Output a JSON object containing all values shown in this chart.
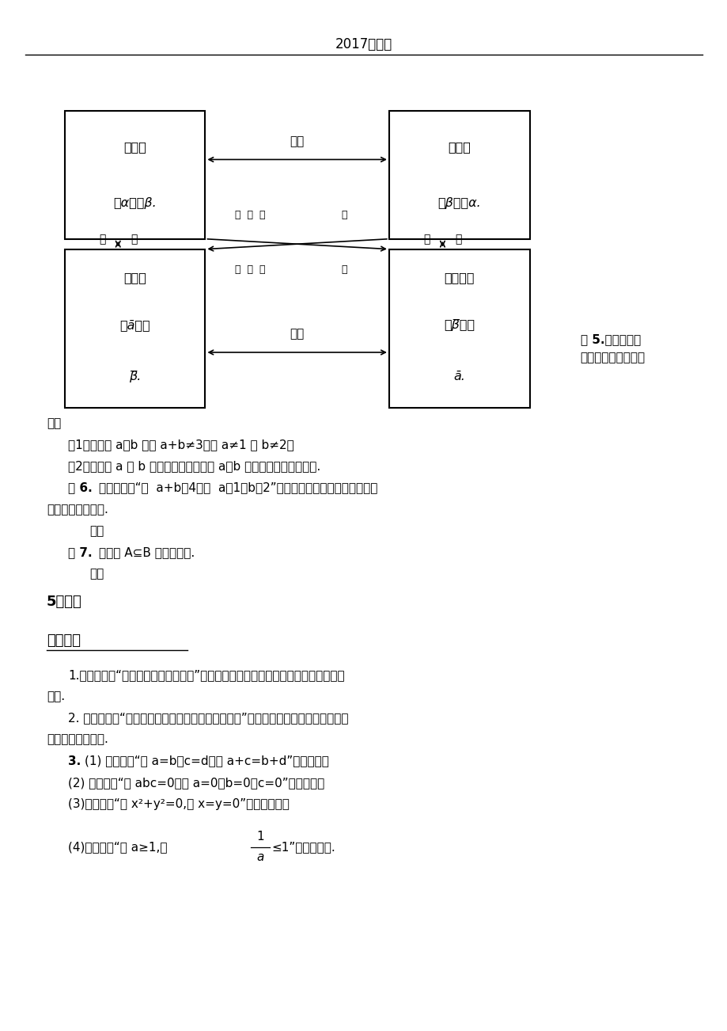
{
  "title": "2017届高一",
  "background_color": "#ffffff",
  "figsize": [
    9.2,
    13.02
  ],
  "dpi": 100,
  "tl_label1": "原命题",
  "tl_label2": "若α，则β.",
  "tr_label1": "逆命题",
  "tr_label2": "若β，则α.",
  "bl_label1": "否命题",
  "bl_label2": "若ā，则",
  "bl_label3": "β̅.",
  "br_label1": "逆否命题",
  "br_label2": "若β̅，则",
  "br_label3": "ā.",
  "arrow_top": "互逆",
  "arrow_bot": "互逆",
  "arrow_left1": "互",
  "arrow_left2": "否",
  "arrow_right1": "互",
  "arrow_right2": "否",
  "diag_upper_left": "互  为  逆",
  "diag_upper_right": "否",
  "diag_lower_left": "互  为  逆",
  "diag_lower_right": "否",
  "ex5_line1": "例 5.判断下列命",
  "ex5_line2": "题的真假，并说明理",
  "by_text": "由：",
  "line1": "（1）若实数 a、b 满足 a+b≠3，则 a≠1 且 b≠2；",
  "line2": "（2）若实数 a 与 b 的积不是有理数，则 a，b 至少有一个不是有理数.",
  "ex6_bold": "例 6.",
  "ex6_rest": "写出命题：“若  a+b＜4，则  a＝1且b＝2”的逆命题、否命题和逆否命题，",
  "ex6_line2": "并判断它们的真假.",
  "jie1_bold": "解：",
  "ex7_bold": "例 7.",
  "ex7_rest": "请写出 A⊆B 的等价命题.",
  "jie2_bold": "解：",
  "section5": "5、小结",
  "backup_title": "备用习题",
  "item1": "1.写出命题：“正三角形的三内角相等”的逆命题、否命题和逆否命题，并判断它们的",
  "item1b": "真假.",
  "item2": "2. 写出命题：“等底等高的两个三角形是全等三角形”的逆命题、否命题和逆否命题，",
  "item2b": "并判断它们的真假.",
  "item3_bold": "3.",
  "item3a": "(1) 写出命题“若 a=b，c=d，则 a+c=b+d”的否命题；",
  "item3b": "(2) 写出命题“若 abc=0，则 a=0或b=0或c=0”的否命题；",
  "item3c": "(3)写出命题“若 x²+y²=0,则 x=y=0”的逆否命题；",
  "item3d_pre": "(4)写出命题“若 a≥1,则",
  "item3d_post": "≤1”的逆否命题.",
  "frac_num": "1",
  "frac_den": "a"
}
